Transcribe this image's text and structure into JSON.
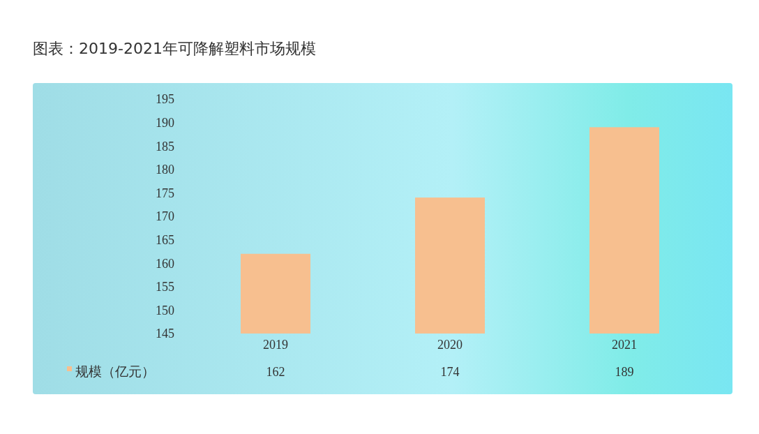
{
  "chart_data": {
    "type": "bar",
    "title": "图表：2019-2021年可降解塑料市场规模",
    "categories": [
      "2019",
      "2020",
      "2021"
    ],
    "series": [
      {
        "name": "规模（亿元）",
        "color": "#f7bf8f",
        "values": [
          162,
          174,
          189
        ]
      }
    ],
    "ylim": [
      145,
      195
    ],
    "yticks": [
      145,
      150,
      155,
      160,
      165,
      170,
      175,
      180,
      185,
      190,
      195
    ],
    "grid": false,
    "legend": "bottom left",
    "data_labels": true
  }
}
